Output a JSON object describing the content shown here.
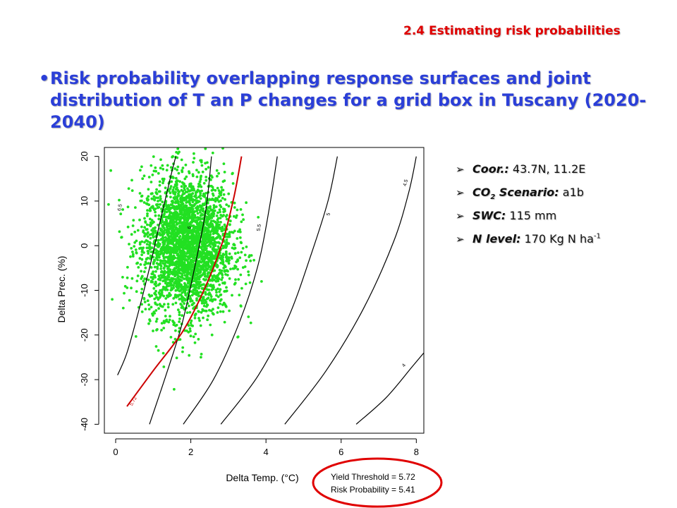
{
  "header": {
    "section_title": "2.4 Estimating risk probabilities",
    "bullet": "•",
    "headline": "Risk probability overlapping response surfaces and joint distribution of T an P changes for a grid box in Tuscany (2020-2040)"
  },
  "info": {
    "arrow": "➢",
    "coor_label": "Coor.:",
    "coor_value": " 43.7N, 11.2E",
    "co2_label_a": "CO",
    "co2_label_sub": "2",
    "co2_label_b": " Scenario:",
    "co2_value": " a1b",
    "swc_label": "SWC:",
    "swc_value": " 115 mm",
    "n_label": "N level:",
    "n_value": " 170 Kg N ha",
    "n_value_sup": "-1"
  },
  "chart_data": {
    "type": "scatter",
    "xlabel": "Delta Temp. (°C)",
    "ylabel": "Delta Prec. (%)",
    "xlim": [
      -0.3,
      8.2
    ],
    "ylim": [
      -42,
      22
    ],
    "xticks": [
      "0",
      "2",
      "4",
      "6",
      "8"
    ],
    "yticks": [
      "-40",
      "-30",
      "-20",
      "-10",
      "0",
      "10",
      "20"
    ],
    "scatter": {
      "name": "joint distribution of T and P changes",
      "color": "#22e022",
      "center_x": 1.9,
      "center_y": 0,
      "spread_x": 0.6,
      "spread_y": 8,
      "count": 3000
    },
    "contours": [
      {
        "label": "6.5",
        "color": "#000000",
        "x": [
          0.05,
          0.3,
          0.6,
          0.9,
          1.2,
          1.45,
          1.6
        ],
        "y": [
          -29,
          -24,
          -15,
          -5,
          6,
          15,
          20
        ]
      },
      {
        "label": "6",
        "color": "#000000",
        "x": [
          0.9,
          1.3,
          1.75,
          2.1,
          2.4,
          2.55
        ],
        "y": [
          -40,
          -30,
          -18,
          -5,
          8,
          20
        ]
      },
      {
        "label": "5.72",
        "color": "#cc0000",
        "x": [
          0.3,
          1.0,
          1.8,
          2.4,
          2.85,
          3.15,
          3.35
        ],
        "y": [
          -36,
          -28,
          -19,
          -9,
          1,
          11,
          20
        ]
      },
      {
        "label": "5.5",
        "color": "#000000",
        "x": [
          1.8,
          2.6,
          3.3,
          3.8,
          4.1,
          4.3
        ],
        "y": [
          -40,
          -30,
          -17,
          -4,
          9,
          20
        ]
      },
      {
        "label": "5",
        "color": "#000000",
        "x": [
          2.8,
          3.8,
          4.6,
          5.2,
          5.65,
          5.9
        ],
        "y": [
          -40,
          -29,
          -16,
          -2,
          10,
          20
        ]
      },
      {
        "label": "4.5",
        "color": "#000000",
        "x": [
          4.5,
          5.6,
          6.6,
          7.4,
          7.8,
          8.0
        ],
        "y": [
          -40,
          -28,
          -14,
          1,
          12,
          20
        ]
      },
      {
        "label": "4",
        "color": "#000000",
        "x": [
          6.4,
          7.2,
          7.9,
          8.2
        ],
        "y": [
          -40,
          -34,
          -27,
          -24
        ]
      }
    ],
    "annotation": {
      "yield_threshold": "Yield Threshold = 5.72",
      "risk_probability": "Risk Probability = 5.41",
      "ellipse_color": "#e00000"
    }
  }
}
